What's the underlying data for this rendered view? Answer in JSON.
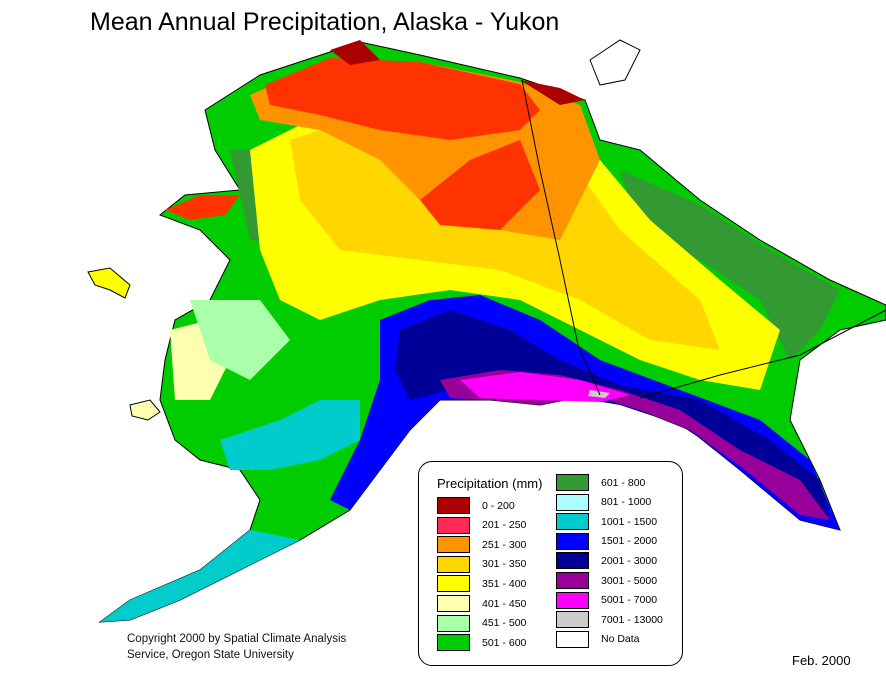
{
  "title": "Mean Annual Precipitation, Alaska - Yukon",
  "legend": {
    "title": "Precipitation (mm)",
    "items": [
      {
        "label": "0 - 200",
        "color": "#aa0000"
      },
      {
        "label": "201 - 250",
        "color": "#ff2a55"
      },
      {
        "label": "251 - 300",
        "color": "#ff9400"
      },
      {
        "label": "301 - 350",
        "color": "#ffd600"
      },
      {
        "label": "351 - 400",
        "color": "#ffff00"
      },
      {
        "label": "401 - 450",
        "color": "#ffffb0"
      },
      {
        "label": "451 - 500",
        "color": "#aaffaa"
      },
      {
        "label": "501 - 600",
        "color": "#00cc00"
      },
      {
        "label": "601 - 800",
        "color": "#339933"
      },
      {
        "label": "801 - 1000",
        "color": "#aaffff"
      },
      {
        "label": "1001 - 1500",
        "color": "#00cccc"
      },
      {
        "label": "1501 - 2000",
        "color": "#0000ff"
      },
      {
        "label": "2001 - 3000",
        "color": "#000099"
      },
      {
        "label": "3001 - 5000",
        "color": "#990099"
      },
      {
        "label": "5001 - 7000",
        "color": "#ff00ff"
      },
      {
        "label": "7001 - 13000",
        "color": "#cccccc"
      },
      {
        "label": "No Data",
        "color": "#ffffff"
      }
    ]
  },
  "copyright": {
    "line1": "Copyright 2000 by Spatial Climate Analysis",
    "line2": "Service, Oregon State University"
  },
  "date": "Feb. 2000"
}
